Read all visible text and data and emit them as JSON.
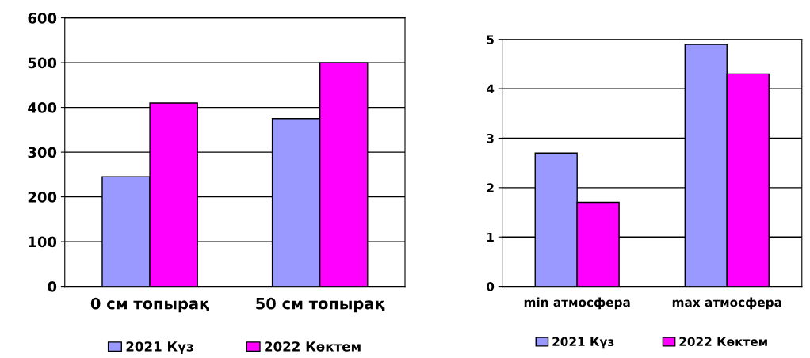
{
  "chart_data": [
    {
      "type": "bar",
      "categories": [
        "0 см топырақ",
        "50 см топырақ"
      ],
      "series": [
        {
          "name": "2021 Күз",
          "color": "#9999ff",
          "values": [
            245,
            375
          ]
        },
        {
          "name": "2022 Көктем",
          "color": "#ff00ff",
          "values": [
            410,
            500
          ]
        }
      ],
      "ylim": [
        0,
        600
      ],
      "yticks": [
        0,
        100,
        200,
        300,
        400,
        500,
        600
      ],
      "grid": "y",
      "legend": "bottom"
    },
    {
      "type": "bar",
      "categories": [
        "min атмосфера",
        "max атмосфера"
      ],
      "series": [
        {
          "name": "2021 Күз",
          "color": "#9999ff",
          "values": [
            2.7,
            4.9
          ]
        },
        {
          "name": "2022 Көктем",
          "color": "#ff00ff",
          "values": [
            1.7,
            4.3
          ]
        }
      ],
      "ylim": [
        0,
        5
      ],
      "yticks": [
        0,
        1,
        2,
        3,
        4,
        5
      ],
      "grid": "y",
      "legend": "bottom"
    }
  ]
}
